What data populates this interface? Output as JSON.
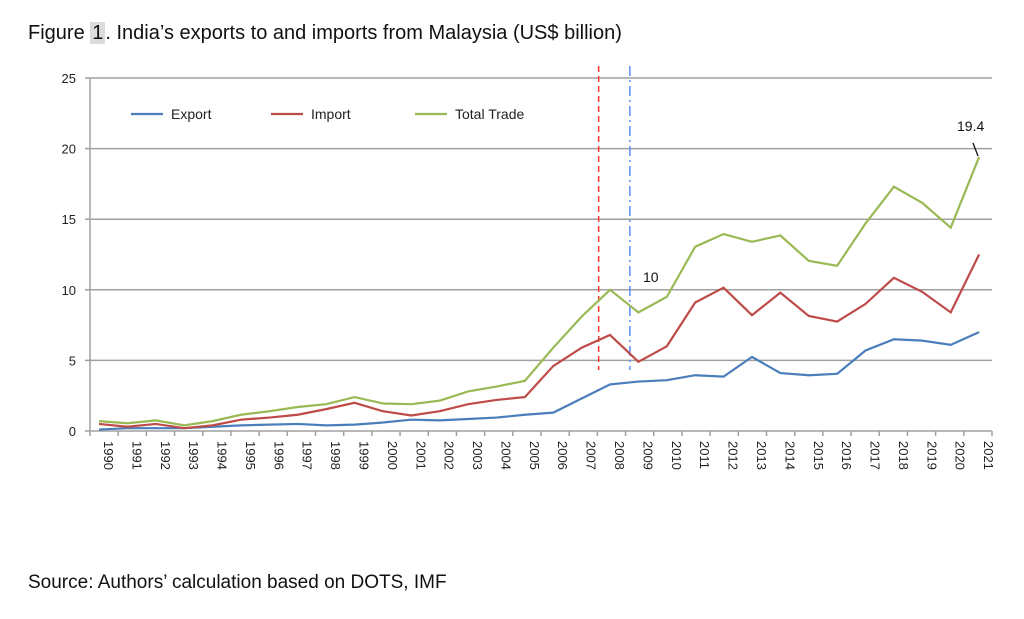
{
  "title_prefix": "Figure ",
  "title_number": "1",
  "title_rest": ". India’s exports to and imports from Malaysia (US$ billion)",
  "source": "Source: Authors’ calculation based on DOTS, IMF",
  "chart_data": {
    "type": "line",
    "title": "Figure 1. India’s exports to and imports from Malaysia (US$ billion)",
    "xlabel": "",
    "ylabel": "",
    "x": [
      1990,
      1991,
      1992,
      1993,
      1994,
      1995,
      1996,
      1997,
      1998,
      1999,
      2000,
      2001,
      2002,
      2003,
      2004,
      2005,
      2006,
      2007,
      2008,
      2009,
      2010,
      2011,
      2012,
      2013,
      2014,
      2015,
      2016,
      2017,
      2018,
      2019,
      2020,
      2021
    ],
    "ylim": [
      0,
      25
    ],
    "yticks": [
      0,
      5,
      10,
      15,
      20,
      25
    ],
    "grid": "horizontal",
    "legend_placement": "top-left",
    "series": [
      {
        "name": "Export",
        "color": "#4a7ebb",
        "values": [
          0.1,
          0.2,
          0.2,
          0.2,
          0.3,
          0.4,
          0.45,
          0.5,
          0.4,
          0.45,
          0.6,
          0.8,
          0.75,
          0.85,
          0.95,
          1.15,
          1.3,
          2.3,
          3.3,
          3.5,
          3.6,
          3.95,
          3.85,
          5.25,
          4.1,
          3.95,
          4.05,
          5.7,
          6.5,
          6.4,
          6.1,
          7.0
        ]
      },
      {
        "name": "Import",
        "color": "#be4b48",
        "values": [
          0.5,
          0.3,
          0.5,
          0.2,
          0.4,
          0.8,
          0.95,
          1.15,
          1.55,
          2.0,
          1.4,
          1.1,
          1.4,
          1.9,
          2.2,
          2.4,
          4.6,
          5.9,
          6.8,
          4.9,
          6.0,
          9.1,
          10.15,
          8.2,
          9.8,
          8.15,
          7.75,
          9.0,
          10.85,
          9.85,
          8.4,
          12.5
        ]
      },
      {
        "name": "Total Trade",
        "color": "#98b954",
        "values": [
          0.7,
          0.55,
          0.75,
          0.4,
          0.7,
          1.15,
          1.4,
          1.7,
          1.9,
          2.4,
          1.95,
          1.9,
          2.15,
          2.8,
          3.15,
          3.55,
          5.9,
          8.1,
          10.0,
          8.4,
          9.5,
          13.05,
          13.95,
          13.4,
          13.85,
          12.05,
          11.7,
          14.7,
          17.3,
          16.15,
          14.4,
          19.4
        ]
      }
    ],
    "vertical_markers": [
      {
        "x": 2007.6,
        "color": "#ff3333",
        "style": "dashed"
      },
      {
        "x": 2008.7,
        "color": "#5b8ff9",
        "style": "dash-dot"
      }
    ],
    "annotations": [
      {
        "text": "10",
        "x": 2008,
        "y": 10.0
      },
      {
        "text": "19.4",
        "x": 2021,
        "y": 19.4
      }
    ]
  }
}
